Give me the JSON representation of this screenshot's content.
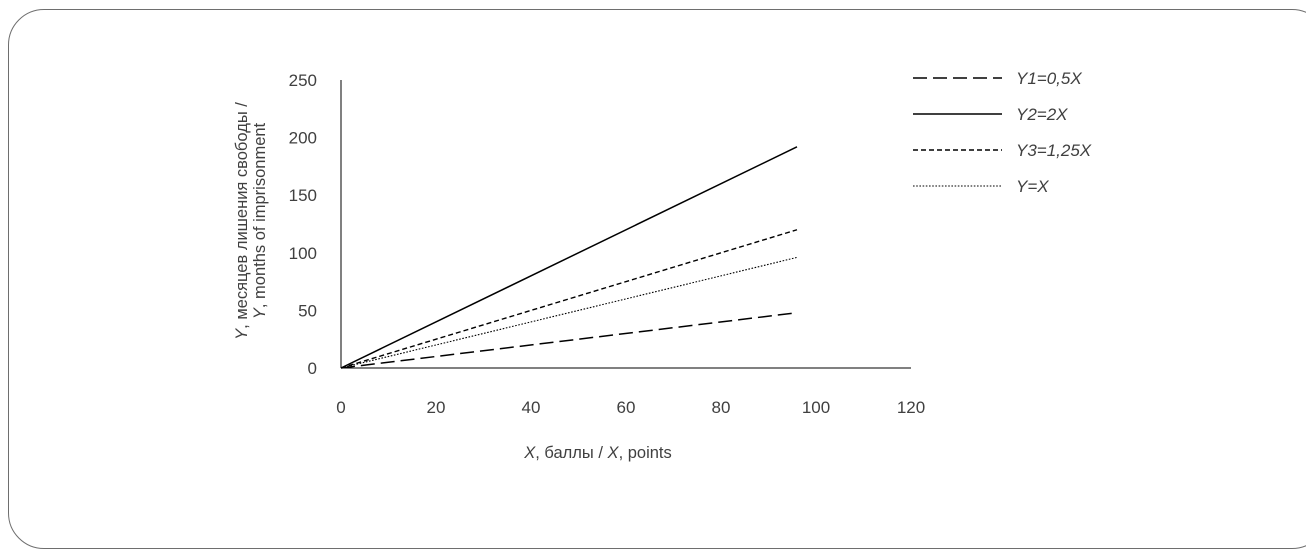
{
  "chart_data": {
    "type": "line",
    "xlabel": {
      "prefix": "X",
      "rest": ", баллы / ",
      "prefix2": "X",
      "rest2": ", points"
    },
    "ylabel": {
      "line1_prefix": "Y",
      "line1_rest": ", месяцев лишения свободы /",
      "line2_prefix": "Y",
      "line2_rest": ", months of imprisonment"
    },
    "xlim": [
      0,
      120
    ],
    "ylim": [
      0,
      250
    ],
    "xticks": [
      0,
      20,
      40,
      60,
      80,
      100,
      120
    ],
    "yticks": [
      0,
      50,
      100,
      150,
      200,
      250
    ],
    "xtick_labels": [
      "0",
      "20",
      "40",
      "60",
      "80",
      "100",
      "120"
    ],
    "ytick_labels": [
      "0",
      "50",
      "100",
      "150",
      "200",
      "250"
    ],
    "grid": false,
    "legend_position": "right",
    "x": [
      0,
      96
    ],
    "series": [
      {
        "name": "Y1=0,5X",
        "slope": 0.5,
        "values": [
          0,
          48
        ],
        "style": "long-dash"
      },
      {
        "name": "Y2=2X",
        "slope": 2,
        "values": [
          0,
          192
        ],
        "style": "solid"
      },
      {
        "name": "Y3=1,25X",
        "slope": 1.25,
        "values": [
          0,
          120
        ],
        "style": "short-dash"
      },
      {
        "name": "Y=X",
        "slope": 1,
        "values": [
          0,
          96
        ],
        "style": "dotted"
      }
    ],
    "line_color": "#000000",
    "axis_color": "#000000",
    "text_color": "#404040"
  }
}
